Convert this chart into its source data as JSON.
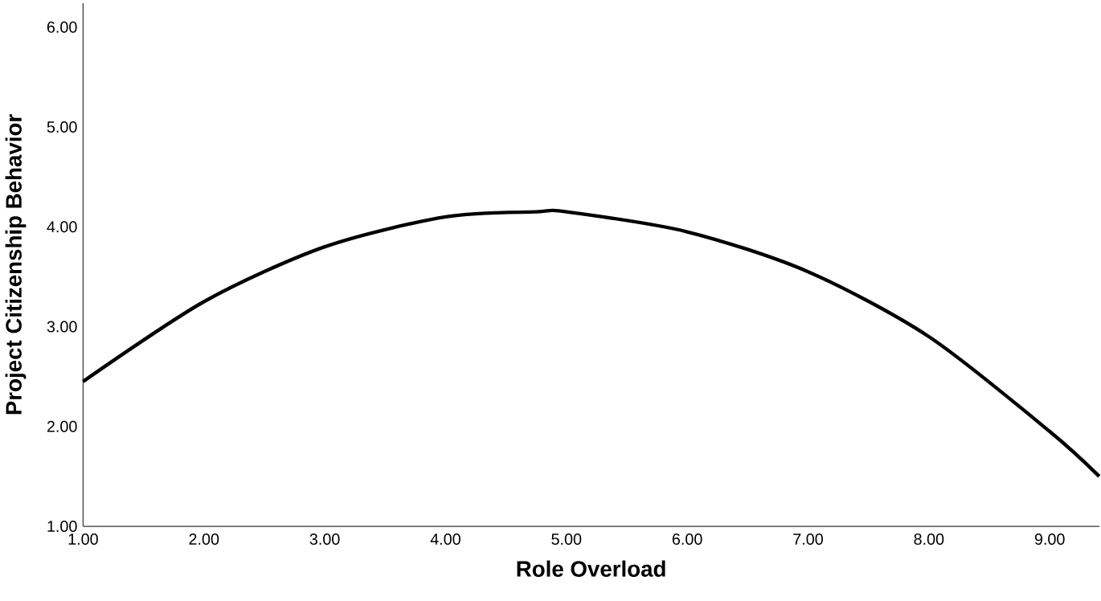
{
  "chart_data": {
    "type": "line",
    "xlabel": "Role Overload",
    "ylabel": "Project Citizenship Behavior",
    "x": [
      1,
      2,
      3,
      4,
      4.75,
      5,
      6,
      7,
      8,
      9,
      9.41
    ],
    "series": [
      {
        "color": "#000000",
        "values": [
          2.45,
          3.25,
          3.8,
          4.1,
          4.15,
          4.15,
          3.95,
          3.55,
          2.9,
          1.95,
          1.5
        ]
      }
    ],
    "xlim": [
      1,
      9.41
    ],
    "ylim": [
      1,
      6.24
    ],
    "xticks": [
      {
        "value": 1,
        "label": "1.00"
      },
      {
        "value": 2,
        "label": "2.00"
      },
      {
        "value": 3,
        "label": "3.00"
      },
      {
        "value": 4,
        "label": "4.00"
      },
      {
        "value": 5,
        "label": "5.00"
      },
      {
        "value": 6,
        "label": "6.00"
      },
      {
        "value": 7,
        "label": "7.00"
      },
      {
        "value": 8,
        "label": "8.00"
      },
      {
        "value": 9,
        "label": "9.00"
      }
    ],
    "yticks": [
      {
        "value": 1,
        "label": "1.00"
      },
      {
        "value": 2,
        "label": "2.00"
      },
      {
        "value": 3,
        "label": "3.00"
      },
      {
        "value": 4,
        "label": "4.00"
      },
      {
        "value": 5,
        "label": "5.00"
      },
      {
        "value": 6,
        "label": "6.00"
      }
    ],
    "grid": false,
    "marker": "none",
    "line_style": "solid"
  }
}
